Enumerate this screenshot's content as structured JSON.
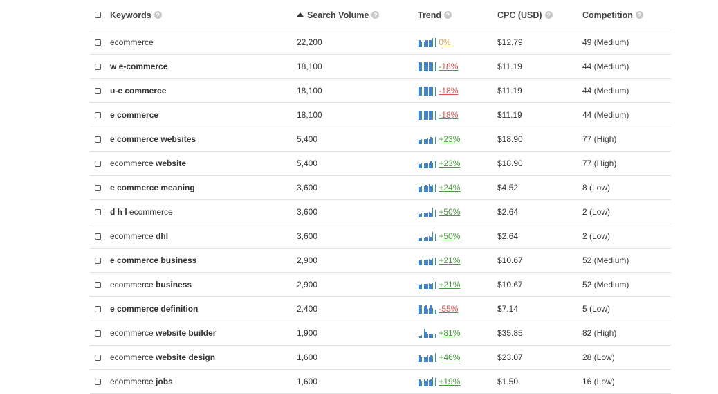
{
  "header": {
    "keywords": "Keywords",
    "volume": "Search Volume",
    "trend": "Trend",
    "cpc": "CPC (USD)",
    "competition": "Competition",
    "help_glyph": "?"
  },
  "colors": {
    "positive": "#4a9a3f",
    "negative": "#d9534f",
    "neutral": "#c8a35a",
    "spark": "#3d85d8"
  },
  "rows": [
    {
      "kw_plain": "ecommerce",
      "kw_bold": "",
      "volume": "22,200",
      "trend_pct": "0%",
      "dir": "neutral",
      "spark": [
        0.6,
        0.75,
        0.6,
        0.75,
        0.6,
        0.75,
        0.75,
        0.75,
        0.75,
        0.9,
        0.9,
        0.9
      ],
      "cpc": "$12.79",
      "comp": "49 (Medium)"
    },
    {
      "kw_plain": "",
      "kw_bold": "w e-commerce",
      "volume": "18,100",
      "trend_pct": "-18%",
      "dir": "neg",
      "spark": [
        0.9,
        0.9,
        0.9,
        0.9,
        0.9,
        0.9,
        0.9,
        0.9,
        0.9,
        0.9,
        0.9,
        0.9
      ],
      "cpc": "$11.19",
      "comp": "44 (Medium)"
    },
    {
      "kw_plain": "",
      "kw_bold": "u-e commerce",
      "volume": "18,100",
      "trend_pct": "-18%",
      "dir": "neg",
      "spark": [
        0.9,
        0.9,
        0.9,
        0.9,
        0.9,
        0.9,
        0.9,
        0.9,
        0.9,
        0.9,
        0.9,
        0.9
      ],
      "cpc": "$11.19",
      "comp": "44 (Medium)"
    },
    {
      "kw_plain": "",
      "kw_bold": "e commerce",
      "volume": "18,100",
      "trend_pct": "-18%",
      "dir": "neg",
      "spark": [
        0.9,
        0.9,
        0.9,
        0.9,
        0.9,
        0.9,
        0.9,
        0.9,
        0.9,
        0.9,
        0.9,
        0.9
      ],
      "cpc": "$11.19",
      "comp": "44 (Medium)"
    },
    {
      "kw_plain": "",
      "kw_bold": "e commerce websites",
      "volume": "5,400",
      "trend_pct": "+23%",
      "dir": "pos",
      "spark": [
        0.5,
        0.45,
        0.5,
        0.45,
        0.5,
        0.5,
        0.55,
        0.5,
        0.75,
        0.6,
        0.9,
        0.75
      ],
      "cpc": "$18.90",
      "comp": "77 (High)"
    },
    {
      "kw_plain": "ecommerce ",
      "kw_bold": "website",
      "volume": "5,400",
      "trend_pct": "+23%",
      "dir": "pos",
      "spark": [
        0.5,
        0.45,
        0.5,
        0.45,
        0.5,
        0.5,
        0.55,
        0.5,
        0.75,
        0.6,
        0.9,
        0.75
      ],
      "cpc": "$18.90",
      "comp": "77 (High)"
    },
    {
      "kw_plain": "",
      "kw_bold": "e commerce meaning",
      "volume": "3,600",
      "trend_pct": "+24%",
      "dir": "pos",
      "spark": [
        0.7,
        0.6,
        0.75,
        0.65,
        0.7,
        0.8,
        0.7,
        0.85,
        0.75,
        0.8,
        0.9,
        0.85
      ],
      "cpc": "$4.52",
      "comp": "8 (Low)"
    },
    {
      "kw_plain": "",
      "kw_bold": "d h l",
      "kw_tail": " ecommerce",
      "volume": "3,600",
      "trend_pct": "+50%",
      "dir": "pos",
      "spark": [
        0.35,
        0.3,
        0.35,
        0.4,
        0.35,
        0.45,
        0.4,
        0.5,
        0.45,
        0.9,
        0.6,
        0.75
      ],
      "cpc": "$2.64",
      "comp": "2 (Low)"
    },
    {
      "kw_plain": "ecommerce ",
      "kw_bold": "dhl",
      "volume": "3,600",
      "trend_pct": "+50%",
      "dir": "pos",
      "spark": [
        0.35,
        0.3,
        0.35,
        0.4,
        0.35,
        0.45,
        0.4,
        0.5,
        0.45,
        0.9,
        0.6,
        0.75
      ],
      "cpc": "$2.64",
      "comp": "2 (Low)"
    },
    {
      "kw_plain": "",
      "kw_bold": "e commerce business",
      "volume": "2,900",
      "trend_pct": "+21%",
      "dir": "pos",
      "spark": [
        0.55,
        0.5,
        0.6,
        0.55,
        0.6,
        0.55,
        0.6,
        0.65,
        0.6,
        0.75,
        0.9,
        0.8
      ],
      "cpc": "$10.67",
      "comp": "52 (Medium)"
    },
    {
      "kw_plain": "ecommerce ",
      "kw_bold": "business",
      "volume": "2,900",
      "trend_pct": "+21%",
      "dir": "pos",
      "spark": [
        0.55,
        0.5,
        0.6,
        0.55,
        0.6,
        0.55,
        0.6,
        0.65,
        0.6,
        0.75,
        0.9,
        0.8
      ],
      "cpc": "$10.67",
      "comp": "52 (Medium)"
    },
    {
      "kw_plain": "",
      "kw_bold": "e commerce definition",
      "volume": "2,400",
      "trend_pct": "-55%",
      "dir": "neg",
      "spark": [
        0.9,
        0.85,
        0.9,
        0.6,
        0.8,
        0.85,
        0.5,
        0.6,
        0.9,
        0.55,
        0.5,
        0.45
      ],
      "cpc": "$7.14",
      "comp": "5 (Low)"
    },
    {
      "kw_plain": "ecommerce ",
      "kw_bold": "website builder",
      "volume": "1,900",
      "trend_pct": "+81%",
      "dir": "pos",
      "spark": [
        0.2,
        0.25,
        0.3,
        0.5,
        0.9,
        0.6,
        0.45,
        0.4,
        0.45,
        0.4,
        0.45,
        0.4
      ],
      "cpc": "$35.85",
      "comp": "82 (High)"
    },
    {
      "kw_plain": "ecommerce ",
      "kw_bold": "website design",
      "volume": "1,600",
      "trend_pct": "+46%",
      "dir": "pos",
      "spark": [
        0.5,
        0.75,
        0.6,
        0.5,
        0.55,
        0.6,
        0.75,
        0.55,
        0.7,
        0.65,
        0.75,
        0.9
      ],
      "cpc": "$23.07",
      "comp": "28 (Low)"
    },
    {
      "kw_plain": "ecommerce ",
      "kw_bold": "jobs",
      "volume": "1,600",
      "trend_pct": "+19%",
      "dir": "pos",
      "spark": [
        0.5,
        0.75,
        0.6,
        0.55,
        0.7,
        0.6,
        0.8,
        0.65,
        0.75,
        0.9,
        0.8,
        0.85
      ],
      "cpc": "$1.50",
      "comp": "16 (Low)"
    }
  ]
}
